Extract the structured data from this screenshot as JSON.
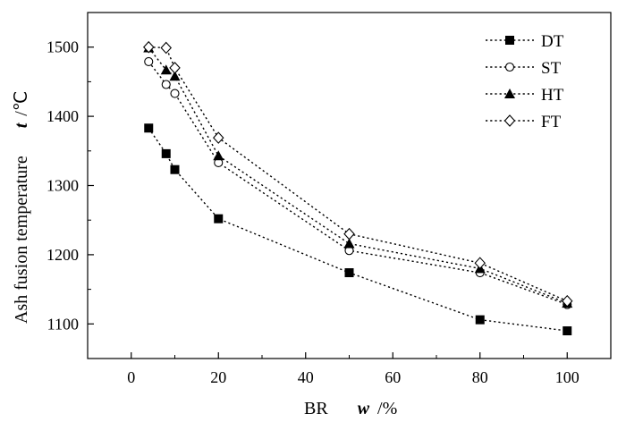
{
  "chart_data": {
    "type": "line",
    "x": [
      4,
      8,
      10,
      20,
      50,
      80,
      100
    ],
    "series": [
      {
        "name": "DT",
        "marker": "square-filled",
        "values": [
          1383,
          1346,
          1323,
          1252,
          1174,
          1106,
          1090
        ]
      },
      {
        "name": "ST",
        "marker": "circle-open",
        "values": [
          1479,
          1446,
          1433,
          1333,
          1206,
          1174,
          1128
        ]
      },
      {
        "name": "HT",
        "marker": "triangle-filled",
        "values": [
          1499,
          1467,
          1458,
          1343,
          1216,
          1180,
          1130
        ]
      },
      {
        "name": "FT",
        "marker": "diamond-open",
        "values": [
          1500,
          1499,
          1470,
          1369,
          1230,
          1188,
          1133
        ]
      }
    ],
    "xlim": [
      -10,
      110
    ],
    "ylim": [
      1050,
      1550
    ],
    "xticks": [
      0,
      20,
      40,
      60,
      80,
      100
    ],
    "yticks": [
      1100,
      1200,
      1300,
      1400,
      1500
    ],
    "xlabel": {
      "prefix": "BR",
      "var": "w",
      "suffix": "/%"
    },
    "ylabel": {
      "text": "Ash fusion temperature",
      "var": "t",
      "suffix": "/℃"
    },
    "line_style": "dotted",
    "legend_position": "top-right",
    "grid": false,
    "colors": {
      "series": "#000000",
      "axis": "#000000",
      "background": "#ffffff"
    }
  }
}
